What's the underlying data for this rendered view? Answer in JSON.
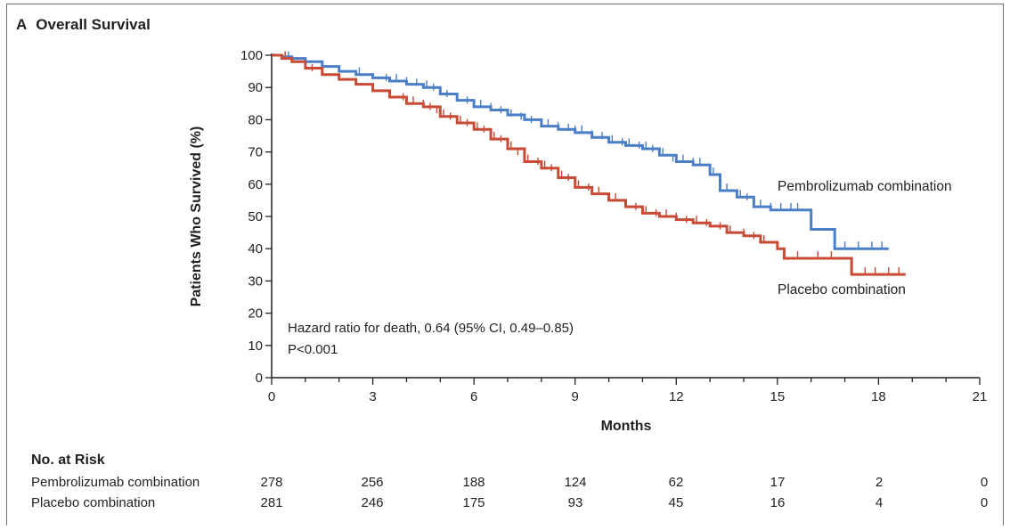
{
  "panel": {
    "letter": "A",
    "title": "Overall Survival"
  },
  "chart_data": {
    "type": "line",
    "subtype": "kaplan-meier",
    "title": "Overall Survival",
    "xlabel": "Months",
    "ylabel": "Patients Who Survived (%)",
    "xlim": [
      0,
      21
    ],
    "ylim": [
      0,
      100
    ],
    "xticks": [
      0,
      3,
      6,
      9,
      12,
      15,
      18,
      21
    ],
    "yticks": [
      0,
      10,
      20,
      30,
      40,
      50,
      60,
      70,
      80,
      90,
      100
    ],
    "grid": false,
    "annotations": [
      "Hazard ratio for death, 0.64 (95% CI, 0.49–0.85)",
      "P<0.001"
    ],
    "series": [
      {
        "name": "Pembrolizumab combination",
        "color": "#4a7ec7",
        "points": [
          [
            0,
            100
          ],
          [
            0.3,
            99.5
          ],
          [
            0.6,
            99
          ],
          [
            1,
            98
          ],
          [
            1.5,
            96.5
          ],
          [
            2,
            95
          ],
          [
            2.5,
            94
          ],
          [
            3,
            93
          ],
          [
            3.5,
            92
          ],
          [
            4,
            91
          ],
          [
            4.5,
            90
          ],
          [
            5,
            88
          ],
          [
            5.5,
            86
          ],
          [
            6,
            84
          ],
          [
            6.5,
            83
          ],
          [
            7,
            81.5
          ],
          [
            7.5,
            80
          ],
          [
            8,
            78
          ],
          [
            8.5,
            77
          ],
          [
            9,
            76
          ],
          [
            9.5,
            74.5
          ],
          [
            10,
            73
          ],
          [
            10.5,
            72
          ],
          [
            11,
            71
          ],
          [
            11.5,
            69
          ],
          [
            12,
            67
          ],
          [
            12.5,
            66
          ],
          [
            12.8,
            66
          ],
          [
            13,
            63
          ],
          [
            13.3,
            58
          ],
          [
            13.8,
            56
          ],
          [
            14.3,
            53
          ],
          [
            14.8,
            52
          ],
          [
            15.3,
            52
          ],
          [
            15.8,
            52
          ],
          [
            16,
            46
          ],
          [
            16.6,
            46
          ],
          [
            16.7,
            40
          ],
          [
            18.3,
            40
          ]
        ],
        "censored": [
          [
            0.5,
            99
          ],
          [
            2.6,
            94
          ],
          [
            3.4,
            92
          ],
          [
            3.7,
            92
          ],
          [
            4,
            91
          ],
          [
            4.3,
            90.5
          ],
          [
            4.6,
            90
          ],
          [
            4.8,
            89
          ],
          [
            5,
            88
          ],
          [
            5.2,
            87
          ],
          [
            5.5,
            86
          ],
          [
            5.8,
            85
          ],
          [
            6,
            84
          ],
          [
            6.2,
            84
          ],
          [
            6.5,
            83
          ],
          [
            6.8,
            82
          ],
          [
            7.1,
            81
          ],
          [
            7.4,
            80
          ],
          [
            7.7,
            79
          ],
          [
            8,
            78
          ],
          [
            8.2,
            78
          ],
          [
            8.5,
            77
          ],
          [
            8.8,
            76.5
          ],
          [
            9,
            76
          ],
          [
            9.2,
            76
          ],
          [
            9.5,
            74.5
          ],
          [
            9.8,
            74
          ],
          [
            10.1,
            73
          ],
          [
            10.4,
            72
          ],
          [
            10.6,
            72
          ],
          [
            10.9,
            71
          ],
          [
            11.1,
            71
          ],
          [
            11.3,
            70
          ],
          [
            11.6,
            69
          ],
          [
            11.9,
            67
          ],
          [
            12.2,
            67
          ],
          [
            12.5,
            66
          ],
          [
            12.7,
            66
          ],
          [
            13.1,
            63
          ],
          [
            13.5,
            58
          ],
          [
            13.9,
            56
          ],
          [
            14.1,
            55
          ],
          [
            14.5,
            53
          ],
          [
            14.8,
            52
          ],
          [
            15.1,
            52
          ],
          [
            15.4,
            52
          ],
          [
            15.6,
            52
          ],
          [
            17,
            40
          ],
          [
            17.4,
            40
          ],
          [
            17.8,
            40
          ],
          [
            18.1,
            40
          ]
        ]
      },
      {
        "name": "Placebo combination",
        "color": "#c94a35",
        "points": [
          [
            0,
            100
          ],
          [
            0.3,
            99
          ],
          [
            0.6,
            98
          ],
          [
            1,
            96
          ],
          [
            1.5,
            94
          ],
          [
            2,
            92.5
          ],
          [
            2.5,
            91
          ],
          [
            3,
            89
          ],
          [
            3.5,
            87
          ],
          [
            4,
            85
          ],
          [
            4.5,
            84
          ],
          [
            5,
            81
          ],
          [
            5.5,
            79
          ],
          [
            6,
            77
          ],
          [
            6.5,
            74
          ],
          [
            7,
            71
          ],
          [
            7.5,
            67
          ],
          [
            8,
            65
          ],
          [
            8.5,
            62
          ],
          [
            9,
            59
          ],
          [
            9.5,
            57
          ],
          [
            10,
            55
          ],
          [
            10.5,
            53
          ],
          [
            11,
            51
          ],
          [
            11.5,
            50
          ],
          [
            12,
            49
          ],
          [
            12.5,
            48
          ],
          [
            13,
            47
          ],
          [
            13.5,
            45
          ],
          [
            14,
            44
          ],
          [
            14.5,
            42
          ],
          [
            15,
            40
          ],
          [
            15.2,
            37
          ],
          [
            16,
            37
          ],
          [
            17,
            37
          ],
          [
            17.2,
            32
          ],
          [
            18.8,
            32
          ]
        ],
        "censored": [
          [
            0.4,
            99
          ],
          [
            1.2,
            95
          ],
          [
            3.9,
            86
          ],
          [
            4.2,
            85
          ],
          [
            4.5,
            84
          ],
          [
            4.7,
            83
          ],
          [
            4.9,
            82
          ],
          [
            5.1,
            81
          ],
          [
            5.3,
            80
          ],
          [
            5.6,
            79
          ],
          [
            5.8,
            78
          ],
          [
            6.1,
            77
          ],
          [
            6.3,
            76
          ],
          [
            6.6,
            74
          ],
          [
            6.8,
            73
          ],
          [
            7.1,
            71
          ],
          [
            7.3,
            69
          ],
          [
            7.6,
            67
          ],
          [
            7.9,
            66
          ],
          [
            8.1,
            65
          ],
          [
            8.3,
            64
          ],
          [
            8.6,
            62
          ],
          [
            8.8,
            61
          ],
          [
            9.1,
            59
          ],
          [
            9.4,
            58
          ],
          [
            9.7,
            57
          ],
          [
            10,
            55
          ],
          [
            10.2,
            55
          ],
          [
            10.5,
            53
          ],
          [
            10.8,
            52
          ],
          [
            11.1,
            51
          ],
          [
            11.4,
            50
          ],
          [
            11.7,
            50
          ],
          [
            12,
            49
          ],
          [
            12.3,
            48
          ],
          [
            12.6,
            48
          ],
          [
            12.9,
            47
          ],
          [
            13.3,
            46
          ],
          [
            13.6,
            45
          ],
          [
            14,
            44
          ],
          [
            14.3,
            43
          ],
          [
            14.6,
            42
          ],
          [
            15.6,
            37
          ],
          [
            16.2,
            37
          ],
          [
            16.6,
            37
          ],
          [
            17.6,
            32
          ],
          [
            17.9,
            32
          ],
          [
            18.3,
            32
          ],
          [
            18.6,
            32
          ]
        ]
      }
    ]
  },
  "annotations": {
    "hr": "Hazard ratio for death, 0.64 (95% CI, 0.49–0.85)",
    "p": "P<0.001"
  },
  "series_labels": {
    "pembro": "Pembrolizumab combination",
    "placebo": "Placebo combination"
  },
  "risk_table": {
    "title": "No. at Risk",
    "rows": [
      {
        "label": "Pembrolizumab combination",
        "values": [
          "278",
          "256",
          "188",
          "124",
          "62",
          "17",
          "2",
          "0"
        ]
      },
      {
        "label": "Placebo combination",
        "values": [
          "281",
          "246",
          "175",
          "93",
          "45",
          "16",
          "4",
          "0"
        ]
      }
    ]
  }
}
